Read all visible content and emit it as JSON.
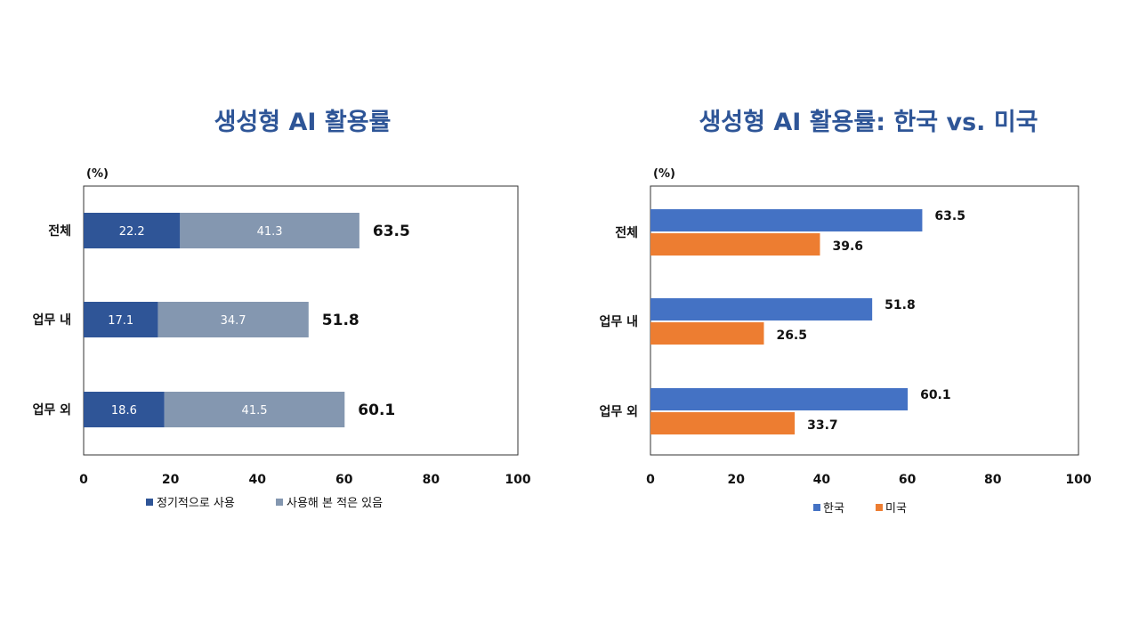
{
  "chart_data": [
    {
      "type": "bar",
      "orientation": "horizontal",
      "stacked": true,
      "title": "생성형 AI 활용률",
      "unit": "(%)",
      "categories": [
        "전체",
        "업무 내",
        "업무 외"
      ],
      "series": [
        {
          "name": "정기적으로 사용",
          "values": [
            22.2,
            17.1,
            18.6
          ],
          "color": "#2f5597"
        },
        {
          "name": "사용해 본 적은 있음",
          "values": [
            41.3,
            34.7,
            41.5
          ],
          "color": "#8497b0"
        }
      ],
      "totals": [
        63.5,
        51.8,
        60.1
      ],
      "xlim": [
        0,
        100
      ],
      "xticks": [
        0,
        20,
        40,
        60,
        80,
        100
      ],
      "grid": false,
      "legend": "bottom"
    },
    {
      "type": "bar",
      "orientation": "horizontal",
      "stacked": false,
      "title": "생성형 AI 활용률: 한국 vs. 미국",
      "unit": "(%)",
      "categories": [
        "전체",
        "업무 내",
        "업무 외"
      ],
      "series": [
        {
          "name": "한국",
          "values": [
            63.5,
            51.8,
            60.1
          ],
          "color": "#4472c4"
        },
        {
          "name": "미국",
          "values": [
            39.6,
            26.5,
            33.7
          ],
          "color": "#ed7d31"
        }
      ],
      "xlim": [
        0,
        100
      ],
      "xticks": [
        0,
        20,
        40,
        60,
        80,
        100
      ],
      "grid": false,
      "legend": "bottom"
    }
  ]
}
